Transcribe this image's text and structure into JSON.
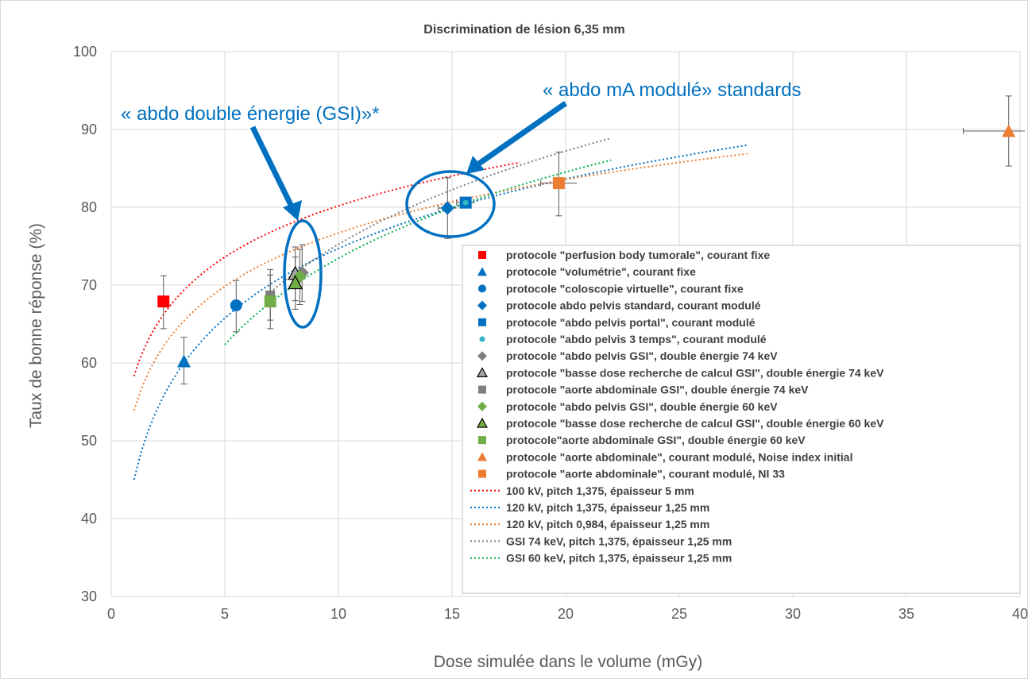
{
  "chart_data": {
    "type": "scatter",
    "title": "Discrimination de lésion 6,35 mm",
    "xlabel": "Dose simulée dans le volume (mGy)",
    "ylabel": "Taux de bonne réponse (%)",
    "xlim": [
      0,
      40
    ],
    "ylim": [
      30,
      100
    ],
    "x_ticks": [
      "0",
      "5",
      "10",
      "15",
      "20",
      "25",
      "30",
      "35",
      "40"
    ],
    "y_ticks": [
      "30",
      "40",
      "50",
      "60",
      "70",
      "80",
      "90",
      "100"
    ],
    "grid": "vertical-and-horizontal",
    "legend_position": "bottom-right",
    "series": [
      {
        "name": "protocole \"perfusion body tumorale\", courant fixe",
        "marker": "square",
        "color": "#ff0000",
        "size": "large",
        "points": [
          {
            "x": 2.3,
            "y": 67.9,
            "yerr": [
              3.5,
              3.3
            ]
          }
        ]
      },
      {
        "name": "protocole  \"volumétrie\", courant fixe",
        "marker": "triangle",
        "color": "#0070c0",
        "size": "large",
        "points": [
          {
            "x": 3.2,
            "y": 60.2,
            "yerr": [
              2.9,
              3.1
            ]
          }
        ]
      },
      {
        "name": "protocole \"coloscopie virtuelle\", courant fixe",
        "marker": "circle",
        "color": "#0070c0",
        "size": "large",
        "points": [
          {
            "x": 5.5,
            "y": 67.4,
            "yerr": [
              3.4,
              3.2
            ]
          }
        ]
      },
      {
        "name": "protocole abdo pelvis standard,  courant modulé",
        "marker": "diamond",
        "color": "#0070c0",
        "size": "large",
        "points": [
          {
            "x": 14.8,
            "y": 79.9,
            "yerr": [
              3.9,
              3.9
            ],
            "xerr": [
              0.4,
              0.4
            ]
          }
        ]
      },
      {
        "name": "protocole \"abdo pelvis portal\", courant modulé",
        "marker": "square",
        "color": "#0070c0",
        "size": "large",
        "points": [
          {
            "x": 15.6,
            "y": 80.6,
            "xerr": [
              0.4,
              0.4
            ]
          }
        ]
      },
      {
        "name": "protocole \"abdo pelvis 3 temps\", courant modulé",
        "marker": "dot",
        "color": "#31b6c6",
        "size": "small",
        "points": [
          {
            "x": 15.6,
            "y": 80.6
          }
        ]
      },
      {
        "name": "protocole \"abdo pelvis GSI\", double énergie 74 keV",
        "marker": "diamond",
        "color": "#7f7f7f",
        "size": "large",
        "points": [
          {
            "x": 8.4,
            "y": 71.6,
            "yerr": [
              3.7,
              3.6
            ]
          }
        ]
      },
      {
        "name": "protocole \"basse dose recherche de calcul GSI\", double énergie 74 keV",
        "marker": "triangle-outline",
        "color": "#a6a6a6",
        "size": "large",
        "points": [
          {
            "x": 8.1,
            "y": 71.5,
            "yerr": [
              3.5,
              3.4
            ]
          }
        ]
      },
      {
        "name": "protocole \"aorte abdominale GSI\", double énergie 74 keV",
        "marker": "square",
        "color": "#7f7f7f",
        "size": "medium",
        "points": [
          {
            "x": 7.0,
            "y": 68.7,
            "yerr": [
              3.2,
              3.3
            ]
          }
        ]
      },
      {
        "name": "protocole \"abdo pelvis GSI\", double énergie 60 keV",
        "marker": "diamond",
        "color": "#70ad47",
        "size": "large",
        "points": [
          {
            "x": 8.3,
            "y": 71.1,
            "yerr": [
              3.6,
              3.5
            ]
          }
        ]
      },
      {
        "name": "protocole \"basse dose recherche de calcul GSI\", double énergie 60 keV",
        "marker": "triangle-outline",
        "color": "#70ad47",
        "size": "large",
        "points": [
          {
            "x": 8.1,
            "y": 70.3,
            "yerr": [
              3.4,
              3.3
            ]
          }
        ]
      },
      {
        "name": "protocole\"aorte abdominale GSI\", double énergie 60 keV",
        "marker": "square",
        "color": "#70ad47",
        "size": "large",
        "points": [
          {
            "x": 7.0,
            "y": 67.9,
            "yerr": [
              3.5,
              3.4
            ]
          }
        ]
      },
      {
        "name": "protocole \"aorte abdominale\", courant modulé, Noise index initial",
        "marker": "triangle",
        "color": "#ed7d31",
        "size": "large",
        "points": [
          {
            "x": 39.5,
            "y": 89.8,
            "yerr": [
              4.5,
              4.5
            ],
            "xerr": [
              2.0,
              2.0
            ]
          }
        ]
      },
      {
        "name": "protocole \"aorte abdominale\", courant modulé, NI 33",
        "marker": "square",
        "color": "#ed7d31",
        "size": "large",
        "points": [
          {
            "x": 19.7,
            "y": 83.1,
            "yerr": [
              4.2,
              4.0
            ],
            "xerr": [
              0.8,
              0.8
            ]
          }
        ]
      }
    ],
    "fits": [
      {
        "name": "100 kV, pitch  1,375, épaisseur 5 mm",
        "color": "#ff0000",
        "a": 9.5,
        "b": 58.3,
        "x_range": [
          1,
          18
        ]
      },
      {
        "name": "120 kV, pitch 1,375, épaisseur 1,25 mm",
        "color": "#0070c0",
        "a": 12.9,
        "b": 45.0,
        "x_range": [
          1,
          28
        ]
      },
      {
        "name": "120 kV, pitch 0,984, épaisseur 1,25 mm",
        "color": "#ed7d31",
        "a": 9.9,
        "b": 53.9,
        "x_range": [
          1,
          28
        ]
      },
      {
        "name": "GSI 74 keV, pitch  1,375, épaisseur 1,25 mm",
        "color": "#7f7f7f",
        "a": 17.3,
        "b": 35.4,
        "x_range": [
          7,
          22
        ]
      },
      {
        "name": "GSI 60 keV, pitch  1,375, épaisseur 1,25 mm",
        "color": "#00b050",
        "a": 16.0,
        "b": 36.6,
        "x_range": [
          5,
          22
        ]
      }
    ],
    "annotations": [
      {
        "text": "« abdo double énergie (GSI)»*",
        "color": "#0070c0"
      },
      {
        "text": "« abdo mA modulé» standards",
        "color": "#0070c0"
      }
    ]
  }
}
